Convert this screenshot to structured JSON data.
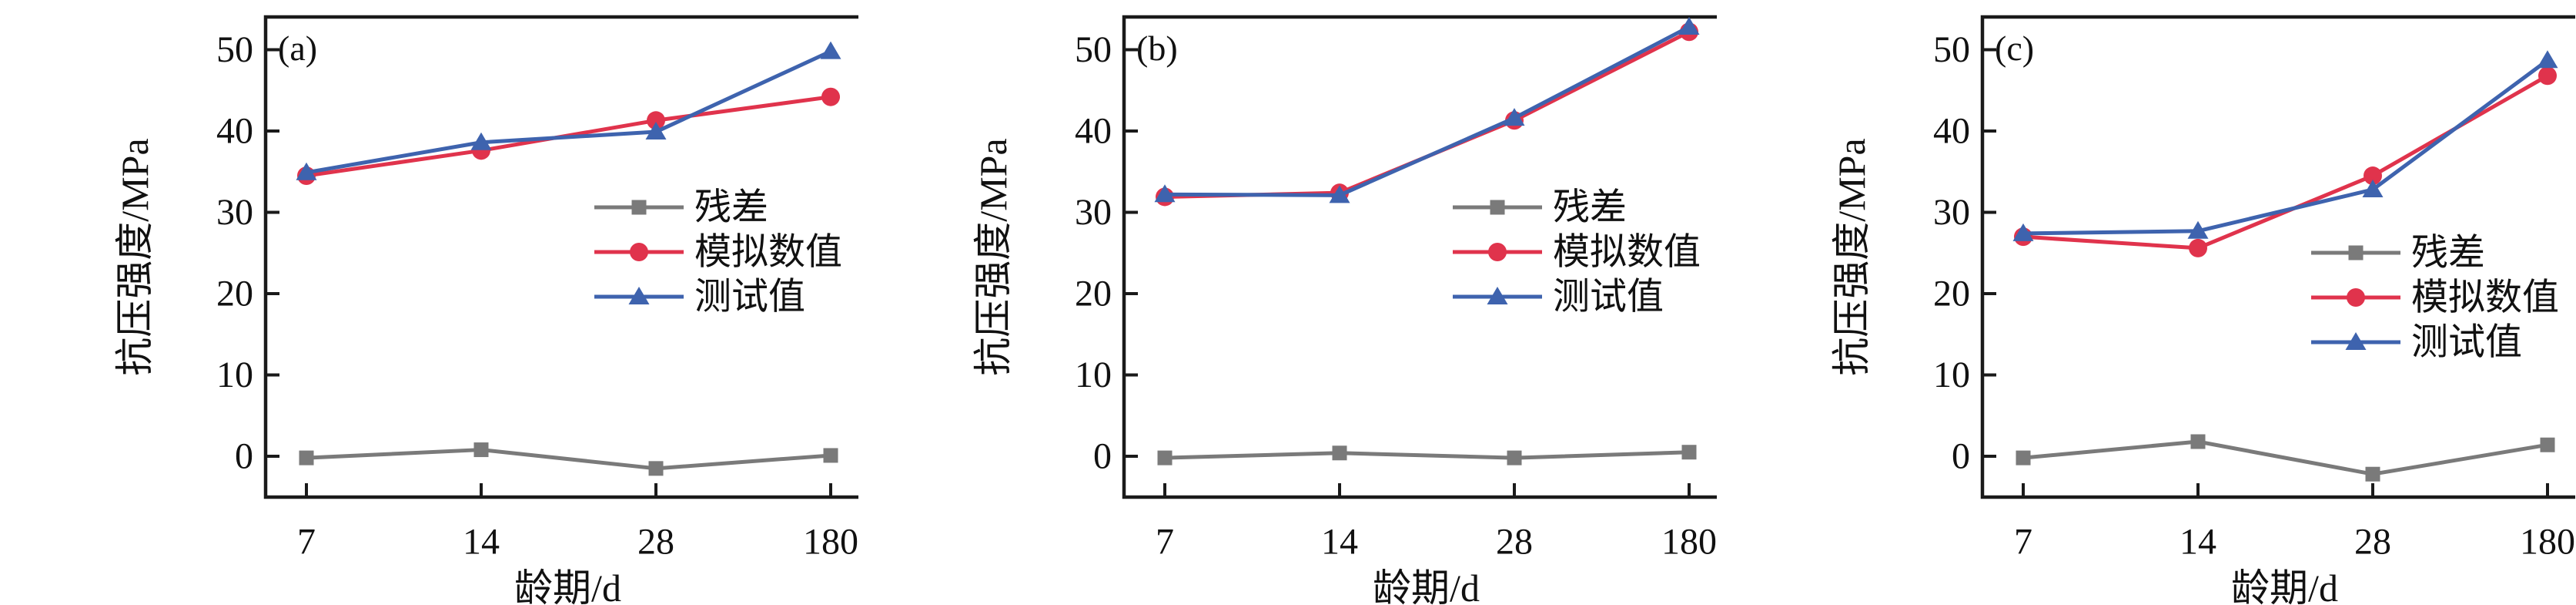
{
  "page": {
    "background": "#ffffff"
  },
  "colors": {
    "axis": "#1a1a1a",
    "text": "#111111",
    "residual": "#7a7a7a",
    "simulated": "#e0334c",
    "test": "#3e63ae"
  },
  "chart_data": [
    {
      "type": "line",
      "panel_label": "(a)",
      "xlabel": "龄期/d",
      "ylabel": "抗压强度/MPa",
      "categories": [
        "7",
        "14",
        "28",
        "180"
      ],
      "yticks": [
        0,
        10,
        20,
        30,
        40,
        50
      ],
      "ylim": [
        -5,
        54
      ],
      "grid": false,
      "legend_position": "center-right",
      "legend": [
        "残差",
        "模拟数值",
        "测试值"
      ],
      "series": [
        {
          "name": "残差",
          "marker": "square",
          "color": "#7a7a7a",
          "values": [
            -0.2,
            0.8,
            -1.5,
            0.1
          ]
        },
        {
          "name": "模拟数值",
          "marker": "circle",
          "color": "#e0334c",
          "values": [
            34.5,
            37.6,
            41.3,
            44.2
          ]
        },
        {
          "name": "测试值",
          "marker": "triangle",
          "color": "#3e63ae",
          "values": [
            34.9,
            38.6,
            39.9,
            49.8
          ]
        }
      ]
    },
    {
      "type": "line",
      "panel_label": "(b)",
      "xlabel": "龄期/d",
      "ylabel": "抗压强度/MPa",
      "categories": [
        "7",
        "14",
        "28",
        "180"
      ],
      "yticks": [
        0,
        10,
        20,
        30,
        40,
        50
      ],
      "ylim": [
        -5,
        54
      ],
      "grid": false,
      "legend_position": "center-right",
      "legend": [
        "残差",
        "模拟数值",
        "测试值"
      ],
      "series": [
        {
          "name": "残差",
          "marker": "square",
          "color": "#7a7a7a",
          "values": [
            -0.2,
            0.4,
            -0.2,
            0.5
          ]
        },
        {
          "name": "模拟数值",
          "marker": "circle",
          "color": "#e0334c",
          "values": [
            31.9,
            32.4,
            41.3,
            52.2
          ]
        },
        {
          "name": "测试值",
          "marker": "triangle",
          "color": "#3e63ae",
          "values": [
            32.2,
            32.1,
            41.6,
            52.8
          ]
        }
      ]
    },
    {
      "type": "line",
      "panel_label": "(c)",
      "xlabel": "龄期/d",
      "ylabel": "抗压强度/MPa",
      "categories": [
        "7",
        "14",
        "28",
        "180"
      ],
      "yticks": [
        0,
        10,
        20,
        30,
        40,
        50
      ],
      "ylim": [
        -5,
        54
      ],
      "grid": false,
      "legend_position": "center-right",
      "legend": [
        "残差",
        "模拟数值",
        "测试值"
      ],
      "series": [
        {
          "name": "残差",
          "marker": "square",
          "color": "#7a7a7a",
          "values": [
            -0.2,
            1.8,
            -2.2,
            1.4
          ]
        },
        {
          "name": "模拟数值",
          "marker": "circle",
          "color": "#e0334c",
          "values": [
            27.0,
            25.6,
            34.5,
            46.8
          ]
        },
        {
          "name": "测试值",
          "marker": "triangle",
          "color": "#3e63ae",
          "values": [
            27.4,
            27.7,
            32.8,
            48.7
          ]
        }
      ]
    }
  ]
}
